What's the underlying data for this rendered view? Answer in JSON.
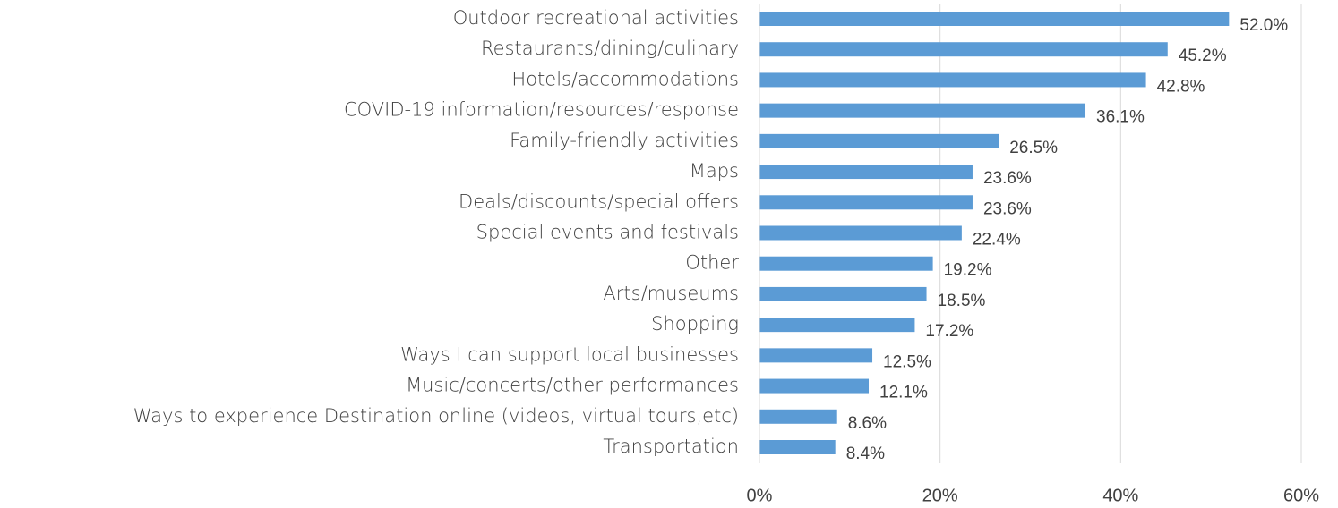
{
  "chart_data": {
    "type": "bar",
    "orientation": "horizontal",
    "categories": [
      "Outdoor recreational activities",
      "Restaurants/dining/culinary",
      "Hotels/accommodations",
      "COVID-19 information/resources/response",
      "Family-friendly activities",
      "Maps",
      "Deals/discounts/special offers",
      "Special events and festivals",
      "Other",
      "Arts/museums",
      "Shopping",
      "Ways I can support local businesses",
      "Music/concerts/other performances",
      "Ways to experience Destination online (videos, virtual tours,etc)",
      "Transportation"
    ],
    "values": [
      52.0,
      45.2,
      42.8,
      36.1,
      26.5,
      23.6,
      23.6,
      22.4,
      19.2,
      18.5,
      17.2,
      12.5,
      12.1,
      8.6,
      8.4
    ],
    "value_labels": [
      "52.0%",
      "45.2%",
      "42.8%",
      "36.1%",
      "26.5%",
      "23.6%",
      "23.6%",
      "22.4%",
      "19.2%",
      "18.5%",
      "17.2%",
      "12.5%",
      "12.1%",
      "8.6%",
      "8.4%"
    ],
    "color": "#5b9bd5",
    "xlim": [
      0,
      60
    ],
    "xticks": [
      {
        "value": 0,
        "label": "0%"
      },
      {
        "value": 20,
        "label": "20%"
      },
      {
        "value": 40,
        "label": "40%"
      },
      {
        "value": 60,
        "label": "60%"
      }
    ],
    "grid": true
  }
}
